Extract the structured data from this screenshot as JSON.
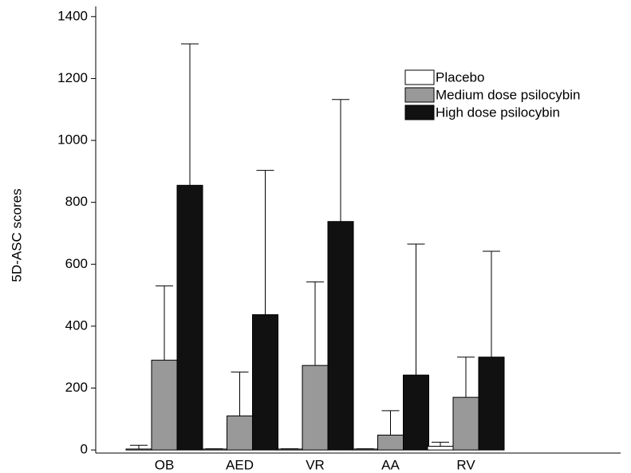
{
  "chart_data": {
    "type": "bar",
    "y_label": "5D-ASC scores",
    "categories": [
      "OB",
      "AED",
      "VR",
      "AA",
      "RV"
    ],
    "series": [
      {
        "name": "Placebo",
        "color": "#ffffff",
        "values": [
          3,
          3,
          3,
          3,
          12
        ],
        "errors": [
          12,
          1,
          1,
          1,
          13
        ]
      },
      {
        "name": "Medium dose psilocybin",
        "color": "#999999",
        "values": [
          290,
          110,
          273,
          48,
          170
        ],
        "errors": [
          240,
          142,
          270,
          79,
          130
        ]
      },
      {
        "name": "High dose psilocybin",
        "color": "#111111",
        "values": [
          855,
          437,
          738,
          242,
          300
        ],
        "errors": [
          457,
          466,
          394,
          423,
          342
        ]
      }
    ],
    "ylim": [
      -10,
      1433
    ],
    "yticks": [
      0,
      200,
      400,
      600,
      800,
      1000,
      1200,
      1400
    ],
    "legend": "upper right"
  }
}
